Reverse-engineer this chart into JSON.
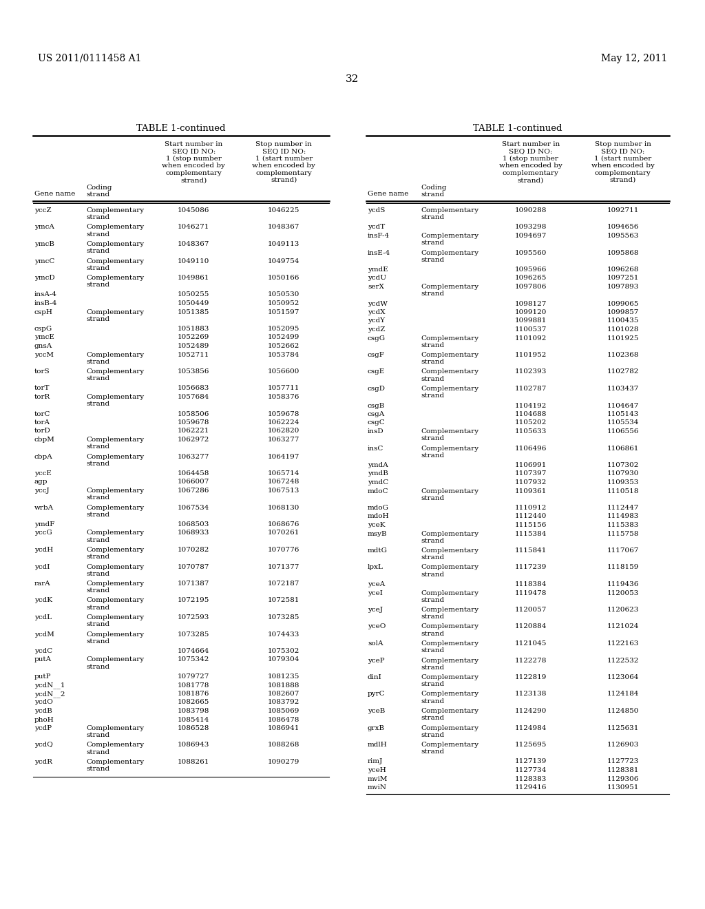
{
  "page_header_left": "US 2011/0111458 A1",
  "page_header_right": "May 12, 2011",
  "page_number": "32",
  "table_title": "TABLE 1-continued",
  "col_headers": [
    "Gene name",
    "Coding\nstrand",
    "Start number in\nSEQ ID NO:\n1 (stop number\nwhen encoded by\ncomplementary\nstrand)",
    "Stop number in\nSEQ ID NO:\n1 (start number\nwhen encoded by\ncomplementary\nstrand)"
  ],
  "left_table": [
    [
      "yccZ",
      "Complementary\nstrand",
      "1045086",
      "1046225"
    ],
    [
      "ymcA",
      "Complementary\nstrand",
      "1046271",
      "1048367"
    ],
    [
      "ymcB",
      "Complementary\nstrand",
      "1048367",
      "1049113"
    ],
    [
      "ymcC",
      "Complementary\nstrand",
      "1049110",
      "1049754"
    ],
    [
      "ymcD",
      "Complementary\nstrand",
      "1049861",
      "1050166"
    ],
    [
      "insA-4",
      "",
      "1050255",
      "1050530"
    ],
    [
      "insB-4",
      "",
      "1050449",
      "1050952"
    ],
    [
      "cspH",
      "Complementary\nstrand",
      "1051385",
      "1051597"
    ],
    [
      "cspG",
      "",
      "1051883",
      "1052095"
    ],
    [
      "ymcE",
      "",
      "1052269",
      "1052499"
    ],
    [
      "gnsA",
      "",
      "1052489",
      "1052662"
    ],
    [
      "yccM",
      "Complementary\nstrand",
      "1052711",
      "1053784"
    ],
    [
      "torS",
      "Complementary\nstrand",
      "1053856",
      "1056600"
    ],
    [
      "torT",
      "",
      "1056683",
      "1057711"
    ],
    [
      "torR",
      "Complementary\nstrand",
      "1057684",
      "1058376"
    ],
    [
      "torC",
      "",
      "1058506",
      "1059678"
    ],
    [
      "torA",
      "",
      "1059678",
      "1062224"
    ],
    [
      "torD",
      "",
      "1062221",
      "1062820"
    ],
    [
      "cbpM",
      "Complementary\nstrand",
      "1062972",
      "1063277"
    ],
    [
      "cbpA",
      "Complementary\nstrand",
      "1063277",
      "1064197"
    ],
    [
      "yccE",
      "",
      "1064458",
      "1065714"
    ],
    [
      "agp",
      "",
      "1066007",
      "1067248"
    ],
    [
      "yccJ",
      "Complementary\nstrand",
      "1067286",
      "1067513"
    ],
    [
      "wrbA",
      "Complementary\nstrand",
      "1067534",
      "1068130"
    ],
    [
      "ymdF",
      "",
      "1068503",
      "1068676"
    ],
    [
      "yccG",
      "Complementary\nstrand",
      "1068933",
      "1070261"
    ],
    [
      "ycdH",
      "Complementary\nstrand",
      "1070282",
      "1070776"
    ],
    [
      "ycdI",
      "Complementary\nstrand",
      "1070787",
      "1071377"
    ],
    [
      "rarA",
      "Complementary\nstrand",
      "1071387",
      "1072187"
    ],
    [
      "ycdK",
      "Complementary\nstrand",
      "1072195",
      "1072581"
    ],
    [
      "ycdL",
      "Complementary\nstrand",
      "1072593",
      "1073285"
    ],
    [
      "ycdM",
      "Complementary\nstrand",
      "1073285",
      "1074433"
    ],
    [
      "ycdC",
      "",
      "1074664",
      "1075302"
    ],
    [
      "putA",
      "Complementary\nstrand",
      "1075342",
      "1079304"
    ],
    [
      "putP",
      "",
      "1079727",
      "1081235"
    ],
    [
      "ycdN__1",
      "",
      "1081778",
      "1081888"
    ],
    [
      "ycdN__2",
      "",
      "1081876",
      "1082607"
    ],
    [
      "ycdO",
      "",
      "1082665",
      "1083792"
    ],
    [
      "ycdB",
      "",
      "1083798",
      "1085069"
    ],
    [
      "phoH",
      "",
      "1085414",
      "1086478"
    ],
    [
      "ycdP",
      "Complementary\nstrand",
      "1086528",
      "1086941"
    ],
    [
      "ycdQ",
      "Complementary\nstrand",
      "1086943",
      "1088268"
    ],
    [
      "ycdR",
      "Complementary\nstrand",
      "1088261",
      "1090279"
    ]
  ],
  "right_table": [
    [
      "ycdS",
      "Complementary\nstrand",
      "1090288",
      "1092711"
    ],
    [
      "ycdT",
      "",
      "1093298",
      "1094656"
    ],
    [
      "insF-4",
      "Complementary\nstrand",
      "1094697",
      "1095563"
    ],
    [
      "insE-4",
      "Complementary\nstrand",
      "1095560",
      "1095868"
    ],
    [
      "ymdE",
      "",
      "1095966",
      "1096268"
    ],
    [
      "ycdU",
      "",
      "1096265",
      "1097251"
    ],
    [
      "serX",
      "Complementary\nstrand",
      "1097806",
      "1097893"
    ],
    [
      "ycdW",
      "",
      "1098127",
      "1099065"
    ],
    [
      "ycdX",
      "",
      "1099120",
      "1099857"
    ],
    [
      "ycdY",
      "",
      "1099881",
      "1100435"
    ],
    [
      "ycdZ",
      "",
      "1100537",
      "1101028"
    ],
    [
      "csgG",
      "Complementary\nstrand",
      "1101092",
      "1101925"
    ],
    [
      "csgF",
      "Complementary\nstrand",
      "1101952",
      "1102368"
    ],
    [
      "csgE",
      "Complementary\nstrand",
      "1102393",
      "1102782"
    ],
    [
      "csgD",
      "Complementary\nstrand",
      "1102787",
      "1103437"
    ],
    [
      "csgB",
      "",
      "1104192",
      "1104647"
    ],
    [
      "csgA",
      "",
      "1104688",
      "1105143"
    ],
    [
      "csgC",
      "",
      "1105202",
      "1105534"
    ],
    [
      "insD",
      "Complementary\nstrand",
      "1105633",
      "1106556"
    ],
    [
      "insC",
      "Complementary\nstrand",
      "1106496",
      "1106861"
    ],
    [
      "ymdA",
      "",
      "1106991",
      "1107302"
    ],
    [
      "ymdB",
      "",
      "1107397",
      "1107930"
    ],
    [
      "ymdC",
      "",
      "1107932",
      "1109353"
    ],
    [
      "mdoC",
      "Complementary\nstrand",
      "1109361",
      "1110518"
    ],
    [
      "mdoG",
      "",
      "1110912",
      "1112447"
    ],
    [
      "mdoH",
      "",
      "1112440",
      "1114983"
    ],
    [
      "yceK",
      "",
      "1115156",
      "1115383"
    ],
    [
      "msyB",
      "Complementary\nstrand",
      "1115384",
      "1115758"
    ],
    [
      "mdtG",
      "Complementary\nstrand",
      "1115841",
      "1117067"
    ],
    [
      "lpxL",
      "Complementary\nstrand",
      "1117239",
      "1118159"
    ],
    [
      "yceA",
      "",
      "1118384",
      "1119436"
    ],
    [
      "yceI",
      "Complementary\nstrand",
      "1119478",
      "1120053"
    ],
    [
      "yceJ",
      "Complementary\nstrand",
      "1120057",
      "1120623"
    ],
    [
      "yceO",
      "Complementary\nstrand",
      "1120884",
      "1121024"
    ],
    [
      "solA",
      "Complementary\nstrand",
      "1121045",
      "1122163"
    ],
    [
      "yceP",
      "Complementary\nstrand",
      "1122278",
      "1122532"
    ],
    [
      "dinI",
      "Complementary\nstrand",
      "1122819",
      "1123064"
    ],
    [
      "pyrC",
      "Complementary\nstrand",
      "1123138",
      "1124184"
    ],
    [
      "yceB",
      "Complementary\nstrand",
      "1124290",
      "1124850"
    ],
    [
      "grxB",
      "Complementary\nstrand",
      "1124984",
      "1125631"
    ],
    [
      "mdlH",
      "Complementary\nstrand",
      "1125695",
      "1126903"
    ],
    [
      "rimJ",
      "",
      "1127139",
      "1127723"
    ],
    [
      "yceH",
      "",
      "1127734",
      "1128381"
    ],
    [
      "mviM",
      "",
      "1128383",
      "1129306"
    ],
    [
      "mviN",
      "",
      "1129416",
      "1130951"
    ]
  ],
  "background_color": "#ffffff",
  "text_color": "#000000"
}
